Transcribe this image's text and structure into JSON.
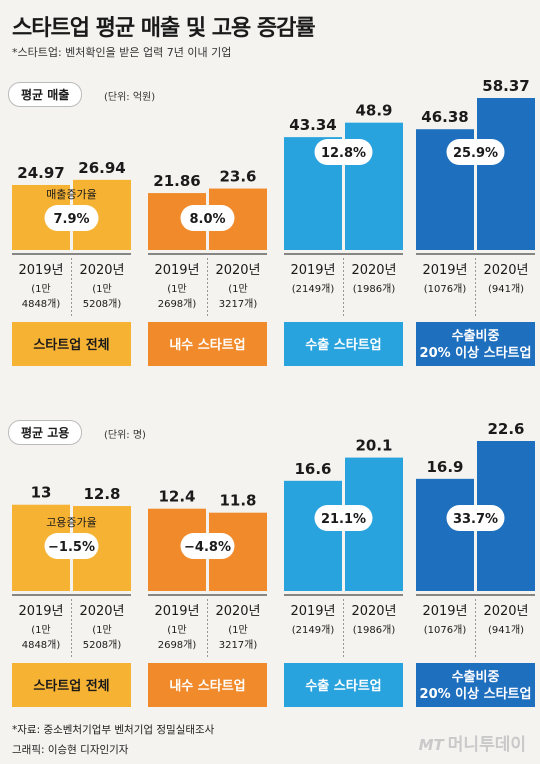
{
  "title": "스타트업 평균 매출 및 고용 증감률",
  "subtitle": "*스타트업: 벤처확인을 받은 업력 7년 이내 기업",
  "colors": {
    "total": "#f6b233",
    "domestic": "#f08a2a",
    "export": "#29a3dd",
    "export20": "#1f6fbf"
  },
  "chart_data": [
    {
      "type": "bar",
      "label": "평균 매출",
      "unit": "(단위: 억원)",
      "rate_caption": "매출증가율",
      "groups": [
        {
          "name": "스타트업 전체",
          "name2": "",
          "color": "total",
          "values": [
            24.97,
            26.94
          ],
          "rate": "7.9%",
          "years": [
            "2019년",
            "2020년"
          ],
          "counts": [
            [
              "(1만",
              "4848개)"
            ],
            [
              "(1만",
              "5208개)"
            ]
          ]
        },
        {
          "name": "내수 스타트업",
          "name2": "",
          "color": "domestic",
          "values": [
            21.86,
            23.6
          ],
          "rate": "8.0%",
          "years": [
            "2019년",
            "2020년"
          ],
          "counts": [
            [
              "(1만",
              "2698개)"
            ],
            [
              "(1만",
              "3217개)"
            ]
          ]
        },
        {
          "name": "수출 스타트업",
          "name2": "",
          "color": "export",
          "values": [
            43.34,
            48.9
          ],
          "rate": "12.8%",
          "years": [
            "2019년",
            "2020년"
          ],
          "counts": [
            [
              "(2149개)"
            ],
            [
              "(1986개)"
            ]
          ]
        },
        {
          "name": "수출비중",
          "name2": "20% 이상 스타트업",
          "color": "export20",
          "values": [
            46.38,
            58.37
          ],
          "rate": "25.9%",
          "years": [
            "2019년",
            "2020년"
          ],
          "counts": [
            [
              "(1076개)"
            ],
            [
              "(941개)"
            ]
          ]
        }
      ]
    },
    {
      "type": "bar",
      "label": "평균 고용",
      "unit": "(단위: 명)",
      "rate_caption": "고용증가율",
      "groups": [
        {
          "name": "스타트업 전체",
          "name2": "",
          "color": "total",
          "values": [
            13,
            12.8
          ],
          "rate": "−1.5%",
          "years": [
            "2019년",
            "2020년"
          ],
          "counts": [
            [
              "(1만",
              "4848개)"
            ],
            [
              "(1만",
              "5208개)"
            ]
          ]
        },
        {
          "name": "내수 스타트업",
          "name2": "",
          "color": "domestic",
          "values": [
            12.4,
            11.8
          ],
          "rate": "−4.8%",
          "years": [
            "2019년",
            "2020년"
          ],
          "counts": [
            [
              "(1만",
              "2698개)"
            ],
            [
              "(1만",
              "3217개)"
            ]
          ]
        },
        {
          "name": "수출 스타트업",
          "name2": "",
          "color": "export",
          "values": [
            16.6,
            20.1
          ],
          "rate": "21.1%",
          "years": [
            "2019년",
            "2020년"
          ],
          "counts": [
            [
              "(2149개)"
            ],
            [
              "(1986개)"
            ]
          ]
        },
        {
          "name": "수출비중",
          "name2": "20% 이상 스타트업",
          "color": "export20",
          "values": [
            16.9,
            22.6
          ],
          "rate": "33.7%",
          "years": [
            "2019년",
            "2020년"
          ],
          "counts": [
            [
              "(1076개)"
            ],
            [
              "(941개)"
            ]
          ]
        }
      ]
    }
  ],
  "footer": {
    "source": "*자료: 중소벤처기업부 벤처기업 정밀실태조사",
    "credit": "그래픽: 이승현 디자인기자",
    "brand_mt": "MT",
    "brand": "머니투데이"
  }
}
